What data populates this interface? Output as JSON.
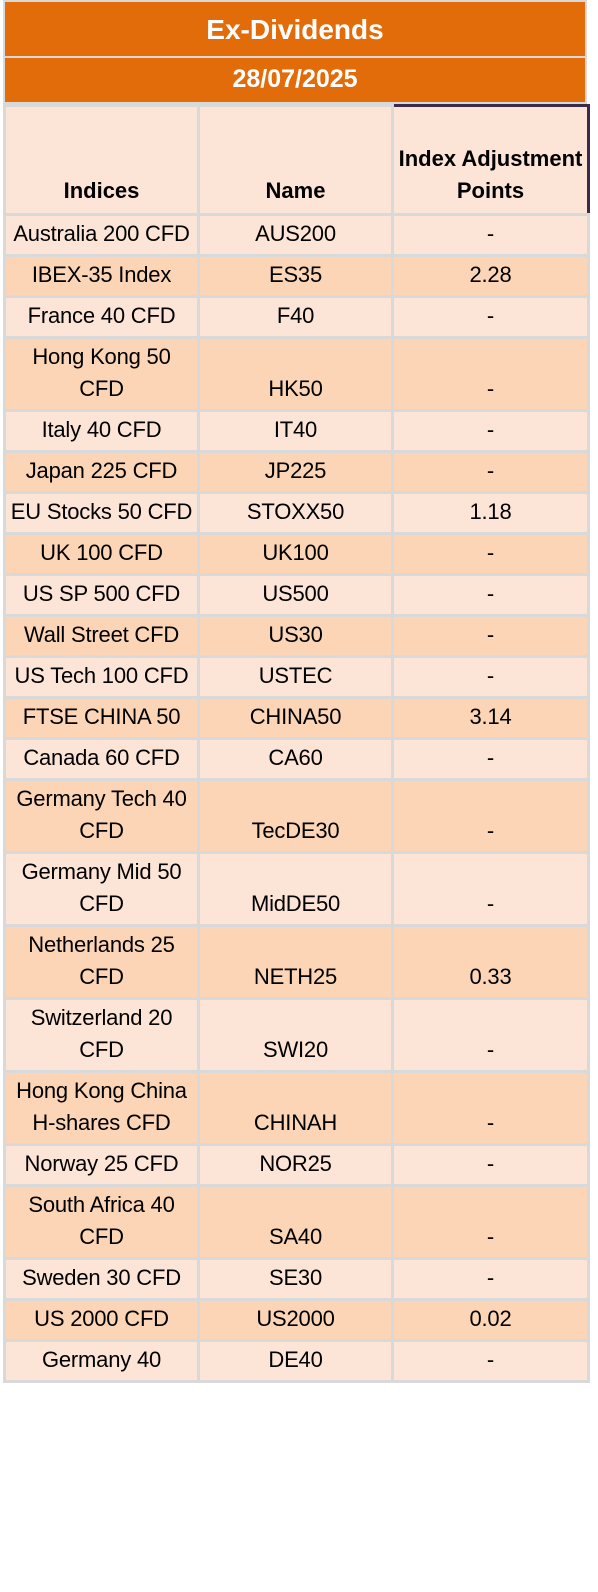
{
  "title": "Ex-Dividends",
  "date": "28/07/2025",
  "columns": {
    "indices": "Indices",
    "name": "Name",
    "adjustment": "Index Adjustment Points"
  },
  "rows": [
    {
      "index": "Australia 200 CFD",
      "name": "AUS200",
      "points": "-"
    },
    {
      "index": "IBEX-35 Index",
      "name": "ES35",
      "points": "2.28"
    },
    {
      "index": "France 40 CFD",
      "name": "F40",
      "points": "-"
    },
    {
      "index": "Hong Kong 50 CFD",
      "name": "HK50",
      "points": "-"
    },
    {
      "index": "Italy 40 CFD",
      "name": "IT40",
      "points": "-"
    },
    {
      "index": "Japan 225 CFD",
      "name": "JP225",
      "points": "-"
    },
    {
      "index": "EU Stocks 50 CFD",
      "name": "STOXX50",
      "points": "1.18"
    },
    {
      "index": "UK 100 CFD",
      "name": "UK100",
      "points": "-"
    },
    {
      "index": "US SP 500 CFD",
      "name": "US500",
      "points": "-"
    },
    {
      "index": "Wall Street CFD",
      "name": "US30",
      "points": "-"
    },
    {
      "index": "US Tech 100 CFD",
      "name": "USTEC",
      "points": "-"
    },
    {
      "index": "FTSE CHINA 50",
      "name": "CHINA50",
      "points": "3.14"
    },
    {
      "index": "Canada 60 CFD",
      "name": "CA60",
      "points": "-"
    },
    {
      "index": "Germany Tech 40 CFD",
      "name": "TecDE30",
      "points": "-"
    },
    {
      "index": "Germany Mid 50 CFD",
      "name": "MidDE50",
      "points": "-"
    },
    {
      "index": "Netherlands 25 CFD",
      "name": "NETH25",
      "points": "0.33"
    },
    {
      "index": "Switzerland 20 CFD",
      "name": "SWI20",
      "points": "-"
    },
    {
      "index": "Hong Kong China H-shares CFD",
      "name": "CHINAH",
      "points": "-"
    },
    {
      "index": "Norway 25 CFD",
      "name": "NOR25",
      "points": "-"
    },
    {
      "index": "South Africa 40 CFD",
      "name": "SA40",
      "points": "-"
    },
    {
      "index": "Sweden 30 CFD",
      "name": "SE30",
      "points": "-"
    },
    {
      "index": "US 2000 CFD",
      "name": "US2000",
      "points": "0.02"
    },
    {
      "index": "Germany 40",
      "name": "DE40",
      "points": "-"
    }
  ]
}
